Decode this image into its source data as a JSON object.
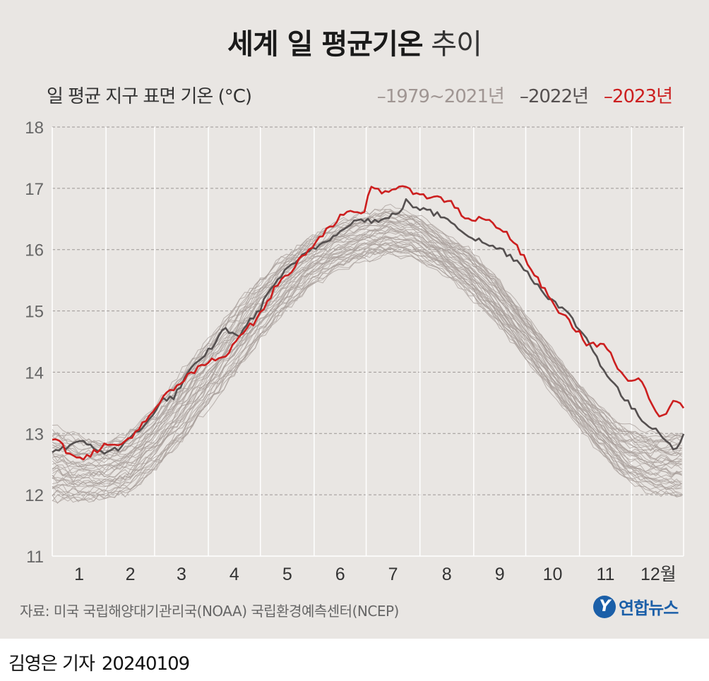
{
  "title": {
    "bold": "세계 일 평균기온",
    "light": "추이"
  },
  "unit_label": "일 평균 지구 표면 기온 (°C)",
  "legend": [
    {
      "label": "1979~2021년",
      "color": "#a09693"
    },
    {
      "label": "2022년",
      "color": "#555050"
    },
    {
      "label": "2023년",
      "color": "#cc1f1f"
    }
  ],
  "source": "자료: 미국 국립해양대기관리국(NOAA) 국립환경예측센터(NCEP)",
  "logo": {
    "mark": "Y",
    "text": "연합뉴스"
  },
  "byline": {
    "name": "김영은 기자",
    "date": "20240109"
  },
  "chart_data": {
    "type": "line",
    "title": "세계 일 평균기온 추이",
    "ylabel": "일 평균 지구 표면 기온 (°C)",
    "xlabel": "",
    "ylim": [
      11,
      18
    ],
    "yticks": [
      11,
      12,
      13,
      14,
      15,
      16,
      17,
      18
    ],
    "xlim": [
      1,
      365
    ],
    "x_tick_labels": [
      "1",
      "2",
      "3",
      "4",
      "5",
      "6",
      "7",
      "8",
      "9",
      "10",
      "11",
      "12월"
    ],
    "month_boundaries_day": [
      32,
      60,
      91,
      121,
      152,
      182,
      213,
      244,
      274,
      305,
      335
    ],
    "grid": "horizontal dashed + vertical month boundaries",
    "legend_position": "top-right",
    "series": [
      {
        "name": "1979~2021년",
        "note": "envelope of 43 yearly series (approx. range shown)",
        "x": [
          1,
          15,
          30,
          45,
          60,
          75,
          90,
          105,
          120,
          135,
          150,
          165,
          180,
          195,
          210,
          225,
          240,
          255,
          270,
          285,
          300,
          315,
          330,
          345,
          365
        ],
        "low": [
          11.8,
          11.8,
          11.85,
          11.95,
          12.3,
          12.75,
          13.3,
          13.85,
          14.4,
          14.9,
          15.3,
          15.6,
          15.75,
          15.85,
          15.8,
          15.6,
          15.25,
          14.8,
          14.3,
          13.75,
          13.2,
          12.7,
          12.2,
          11.95,
          11.85
        ],
        "high": [
          13.2,
          13.05,
          12.95,
          13.1,
          13.5,
          14.05,
          14.6,
          15.1,
          15.6,
          16.0,
          16.3,
          16.5,
          16.65,
          16.75,
          16.65,
          16.35,
          16.1,
          15.7,
          15.15,
          14.6,
          14.05,
          13.55,
          13.2,
          13.05,
          13.1
        ]
      },
      {
        "name": "2022년",
        "x": [
          1,
          10,
          20,
          30,
          40,
          50,
          60,
          65,
          70,
          80,
          90,
          100,
          110,
          115,
          120,
          130,
          140,
          150,
          160,
          170,
          180,
          190,
          200,
          205,
          210,
          220,
          230,
          240,
          250,
          260,
          270,
          280,
          290,
          300,
          310,
          320,
          330,
          340,
          350,
          360,
          365
        ],
        "y": [
          12.7,
          12.8,
          12.85,
          12.7,
          12.75,
          13.05,
          13.3,
          13.6,
          13.55,
          14.0,
          14.3,
          14.7,
          14.6,
          14.85,
          15.0,
          15.5,
          15.75,
          16.0,
          16.15,
          16.4,
          16.5,
          16.45,
          16.6,
          16.78,
          16.7,
          16.6,
          16.5,
          16.25,
          16.1,
          16.0,
          15.8,
          15.45,
          15.15,
          14.9,
          14.5,
          14.0,
          13.6,
          13.25,
          13.05,
          12.75,
          12.95
        ]
      },
      {
        "name": "2023년",
        "x": [
          1,
          10,
          20,
          30,
          40,
          50,
          60,
          65,
          70,
          80,
          90,
          100,
          110,
          115,
          120,
          130,
          140,
          150,
          160,
          170,
          180,
          185,
          190,
          200,
          210,
          220,
          230,
          240,
          250,
          260,
          270,
          280,
          290,
          300,
          310,
          320,
          330,
          340,
          350,
          355,
          360,
          365
        ],
        "y": [
          12.95,
          12.7,
          12.6,
          12.8,
          12.8,
          13.05,
          13.35,
          13.6,
          13.7,
          13.95,
          14.15,
          14.25,
          14.65,
          14.75,
          14.9,
          15.4,
          15.7,
          16.05,
          16.35,
          16.6,
          16.55,
          17.05,
          16.95,
          17.0,
          16.95,
          16.85,
          16.8,
          16.5,
          16.5,
          16.35,
          16.0,
          15.55,
          15.1,
          14.8,
          14.45,
          14.45,
          13.9,
          13.85,
          13.3,
          13.35,
          13.6,
          13.45
        ]
      }
    ]
  }
}
